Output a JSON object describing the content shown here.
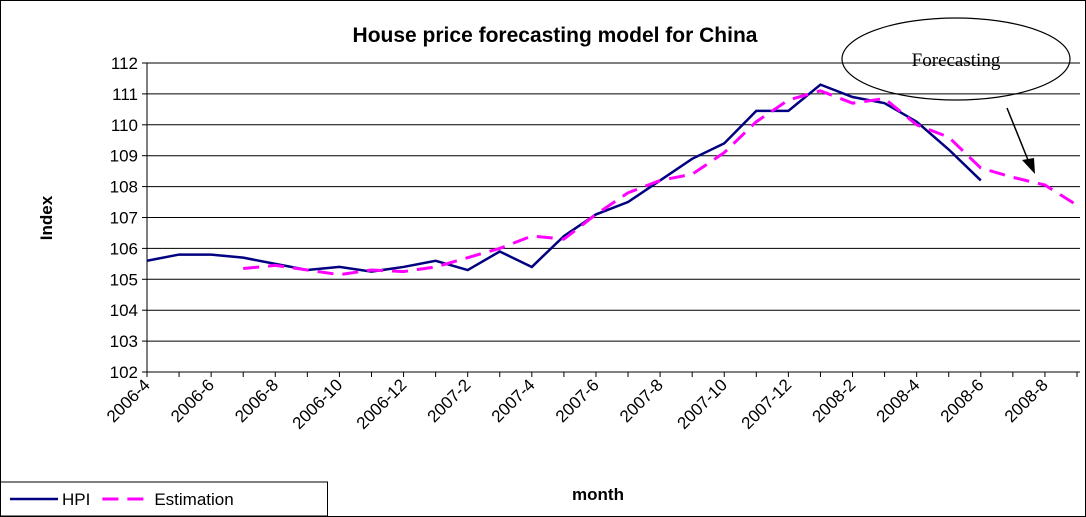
{
  "chart_data": {
    "type": "line",
    "title": "House price forecasting model for China",
    "x_label": "month",
    "y_label": "Index",
    "annotation": "Forecasting",
    "categories": [
      "2006-4",
      null,
      "2006-6",
      null,
      "2006-8",
      null,
      "2006-10",
      null,
      "2006-12",
      null,
      "2007-2",
      null,
      "2007-4",
      null,
      "2007-6",
      null,
      "2007-8",
      null,
      "2007-10",
      null,
      "2007-12",
      null,
      "2008-2",
      null,
      "2008-4",
      null,
      "2008-6",
      null,
      "2008-8",
      null
    ],
    "series": [
      {
        "name": "HPI",
        "color": "#000080",
        "dash": false,
        "values": [
          105.6,
          105.8,
          105.8,
          105.7,
          105.5,
          105.3,
          105.4,
          105.25,
          105.4,
          105.6,
          105.3,
          105.9,
          105.4,
          106.4,
          107.1,
          107.5,
          108.2,
          108.9,
          109.4,
          110.45,
          110.45,
          111.3,
          110.9,
          110.7,
          110.1,
          109.2,
          108.2,
          null,
          null,
          null
        ]
      },
      {
        "name": "Estimation",
        "color": "#ff00ff",
        "dash": true,
        "values": [
          null,
          null,
          null,
          105.35,
          105.45,
          105.3,
          105.15,
          105.3,
          105.25,
          105.4,
          105.7,
          106.0,
          106.4,
          106.3,
          107.1,
          107.8,
          108.2,
          108.4,
          109.1,
          110.1,
          110.8,
          111.1,
          110.7,
          110.85,
          110.0,
          109.6,
          108.6,
          108.3,
          108.05,
          107.4
        ]
      }
    ],
    "ylim": [
      102,
      112
    ],
    "yticks": [
      102,
      103,
      104,
      105,
      106,
      107,
      108,
      109,
      110,
      111,
      112
    ],
    "grid": true,
    "legend": "bottom-left"
  }
}
